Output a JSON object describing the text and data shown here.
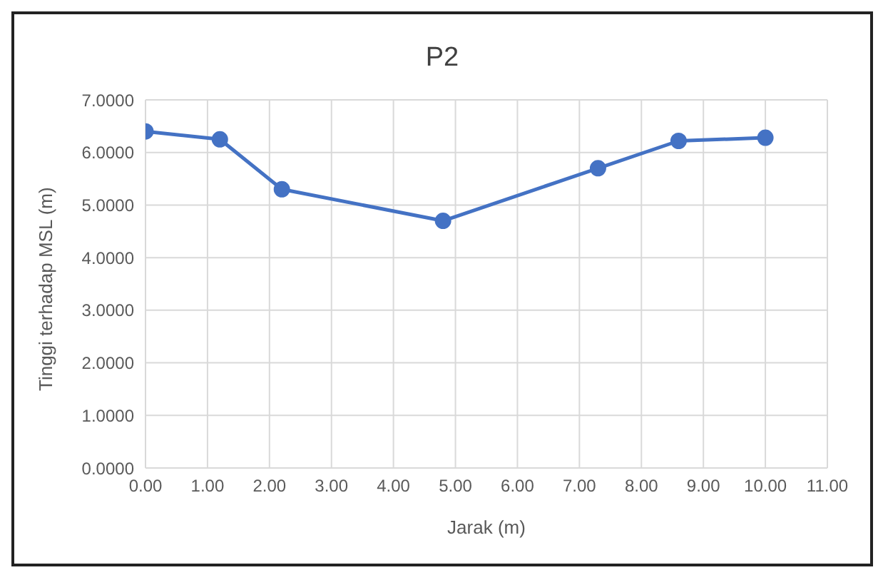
{
  "chart_data": {
    "type": "line",
    "title": "P2",
    "xlabel": "Jarak (m)",
    "ylabel": "Tinggi terhadap MSL (m)",
    "x": [
      0,
      1.2,
      2.2,
      4.8,
      7.3,
      8.6,
      10.0
    ],
    "series": [
      {
        "color": "#4472c4",
        "values": [
          6.4,
          6.25,
          5.3,
          4.7,
          5.7,
          6.22,
          6.28
        ]
      }
    ],
    "xlim": [
      0,
      11
    ],
    "xticks": [
      {
        "value": 0,
        "label": "0.00"
      },
      {
        "value": 1,
        "label": "1.00"
      },
      {
        "value": 2,
        "label": "2.00"
      },
      {
        "value": 3,
        "label": "3.00"
      },
      {
        "value": 4,
        "label": "4.00"
      },
      {
        "value": 5,
        "label": "5.00"
      },
      {
        "value": 6,
        "label": "6.00"
      },
      {
        "value": 7,
        "label": "7.00"
      },
      {
        "value": 8,
        "label": "8.00"
      },
      {
        "value": 9,
        "label": "9.00"
      },
      {
        "value": 10,
        "label": "10.00"
      },
      {
        "value": 11,
        "label": "11.00"
      }
    ],
    "ylim": [
      0,
      7
    ],
    "yticks": [
      {
        "value": 0,
        "label": "0.0000"
      },
      {
        "value": 1,
        "label": "1.0000"
      },
      {
        "value": 2,
        "label": "2.0000"
      },
      {
        "value": 3,
        "label": "3.0000"
      },
      {
        "value": 4,
        "label": "4.0000"
      },
      {
        "value": 5,
        "label": "5.0000"
      },
      {
        "value": 6,
        "label": "6.0000"
      },
      {
        "value": 7,
        "label": "7.0000"
      }
    ],
    "grid": true,
    "marker": "circle",
    "line_style": "solid",
    "legend": false
  }
}
